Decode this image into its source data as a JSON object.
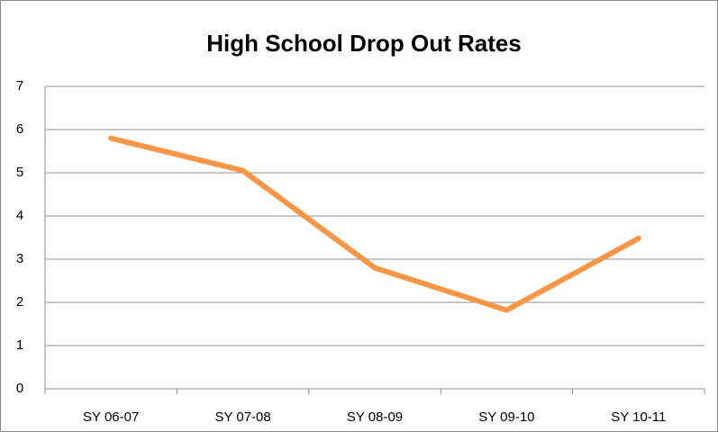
{
  "chart_data": {
    "type": "line",
    "title": "High School Drop Out Rates",
    "categories": [
      "SY 06-07",
      "SY 07-08",
      "SY 08-09",
      "SY 09-10",
      "SY 10-11"
    ],
    "series": [
      {
        "color": "#f79646",
        "values": [
          5.8,
          5.05,
          2.8,
          1.82,
          3.48
        ]
      }
    ],
    "ylim": [
      0,
      7
    ],
    "yticks": [
      0,
      1,
      2,
      3,
      4,
      5,
      6,
      7
    ],
    "grid": true
  }
}
